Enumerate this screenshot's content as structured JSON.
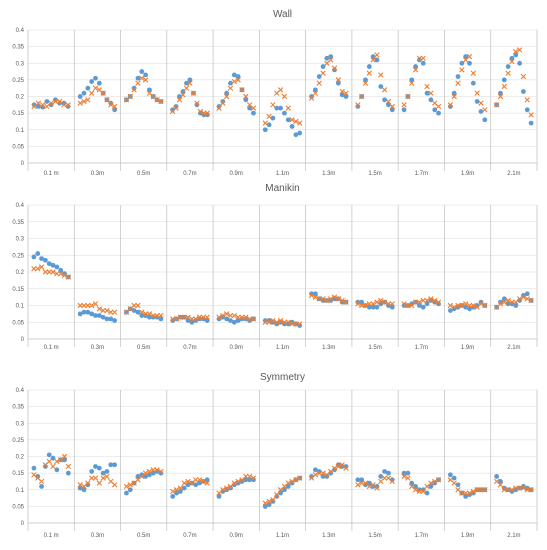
{
  "chart_data": [
    {
      "type": "scatter",
      "title": "Wall",
      "xlabel": "",
      "ylabel": "",
      "ylim": [
        0,
        0.4
      ],
      "yticks": [
        "0",
        "0.05",
        "0.1",
        "0.15",
        "0.2",
        "0.25",
        "0.3",
        "0.35",
        "0.4"
      ],
      "categories": [
        "0.1 m",
        "0.3m",
        "0.5m",
        "0.7m",
        "0.9m",
        "1.1m",
        "1.3m",
        "1.5m",
        "1.7m",
        "1.9m",
        "2.1m"
      ],
      "grid": true,
      "legend": "none",
      "series": [
        {
          "marker": "circle",
          "color": "#5b9bd5",
          "values": [
            [
              0.175,
              0.17,
              0.168,
              0.185,
              0.175,
              0.19,
              0.18,
              0.18,
              0.17
            ],
            [
              0.2,
              0.21,
              0.225,
              0.245,
              0.255,
              0.24,
              0.21,
              0.19,
              0.18,
              0.16
            ],
            [
              0.19,
              0.2,
              0.225,
              0.255,
              0.275,
              0.265,
              0.22,
              0.2,
              0.19,
              0.185
            ],
            [
              0.16,
              0.17,
              0.2,
              0.215,
              0.24,
              0.25,
              0.21,
              0.175,
              0.15,
              0.145,
              0.145
            ],
            [
              0.17,
              0.185,
              0.21,
              0.24,
              0.265,
              0.26,
              0.22,
              0.19,
              0.165,
              0.15
            ],
            [
              0.1,
              0.115,
              0.135,
              0.165,
              0.165,
              0.15,
              0.13,
              0.11,
              0.085,
              0.09
            ],
            [
              0.2,
              0.22,
              0.26,
              0.29,
              0.315,
              0.32,
              0.28,
              0.24,
              0.205,
              0.2
            ],
            [
              0.17,
              0.2,
              0.25,
              0.29,
              0.32,
              0.31,
              0.23,
              0.19,
              0.175,
              0.16
            ],
            [
              0.16,
              0.2,
              0.25,
              0.29,
              0.31,
              0.3,
              0.21,
              0.19,
              0.16,
              0.15
            ],
            [
              0.17,
              0.21,
              0.26,
              0.3,
              0.32,
              0.3,
              0.24,
              0.185,
              0.155,
              0.13
            ],
            [
              0.175,
              0.21,
              0.25,
              0.29,
              0.315,
              0.325,
              0.3,
              0.215,
              0.16,
              0.12
            ]
          ]
        },
        {
          "marker": "x",
          "color": "#ed7d31",
          "values": [
            [
              0.17,
              0.18,
              0.175,
              0.17,
              0.18,
              0.185,
              0.185,
              0.175,
              0.175
            ],
            [
              0.18,
              0.185,
              0.19,
              0.21,
              0.225,
              0.22,
              0.21,
              0.19,
              0.175,
              0.17
            ],
            [
              0.19,
              0.2,
              0.22,
              0.24,
              0.255,
              0.25,
              0.21,
              0.2,
              0.19,
              0.185
            ],
            [
              0.155,
              0.165,
              0.19,
              0.205,
              0.225,
              0.24,
              0.21,
              0.18,
              0.155,
              0.15,
              0.15
            ],
            [
              0.165,
              0.18,
              0.2,
              0.225,
              0.245,
              0.25,
              0.22,
              0.2,
              0.175,
              0.165
            ],
            [
              0.12,
              0.14,
              0.175,
              0.21,
              0.22,
              0.2,
              0.165,
              0.13,
              0.125,
              0.12
            ],
            [
              0.195,
              0.21,
              0.24,
              0.27,
              0.3,
              0.31,
              0.285,
              0.25,
              0.215,
              0.21
            ],
            [
              0.175,
              0.2,
              0.24,
              0.27,
              0.31,
              0.325,
              0.265,
              0.22,
              0.185,
              0.17
            ],
            [
              0.175,
              0.2,
              0.24,
              0.28,
              0.315,
              0.315,
              0.23,
              0.21,
              0.18,
              0.17
            ],
            [
              0.175,
              0.2,
              0.24,
              0.28,
              0.31,
              0.32,
              0.27,
              0.21,
              0.18,
              0.16
            ],
            [
              0.175,
              0.2,
              0.23,
              0.27,
              0.305,
              0.335,
              0.34,
              0.26,
              0.19,
              0.145
            ]
          ]
        }
      ]
    },
    {
      "type": "scatter",
      "title": "Manikin",
      "xlabel": "",
      "ylabel": "",
      "ylim": [
        0,
        0.4
      ],
      "yticks": [
        "0",
        "0.05",
        "0.1",
        "0.15",
        "0.2",
        "0.25",
        "0.3",
        "0.35",
        "0.4"
      ],
      "categories": [
        "0.1 m",
        "0.3m",
        "0.5m",
        "0.7m",
        "0.9m",
        "1.1m",
        "1.3m",
        "1.5m",
        "1.7m",
        "1.9m",
        "2.1m"
      ],
      "grid": true,
      "legend": "none",
      "series": [
        {
          "marker": "circle",
          "color": "#5b9bd5",
          "values": [
            [
              0.245,
              0.255,
              0.24,
              0.235,
              0.225,
              0.22,
              0.215,
              0.205,
              0.195,
              0.185
            ],
            [
              0.075,
              0.08,
              0.08,
              0.075,
              0.07,
              0.07,
              0.065,
              0.06,
              0.06,
              0.055
            ],
            [
              0.08,
              0.09,
              0.085,
              0.08,
              0.07,
              0.07,
              0.065,
              0.065,
              0.065,
              0.06
            ],
            [
              0.055,
              0.06,
              0.065,
              0.065,
              0.055,
              0.05,
              0.055,
              0.06,
              0.06,
              0.055
            ],
            [
              0.06,
              0.065,
              0.06,
              0.055,
              0.05,
              0.055,
              0.06,
              0.06,
              0.055,
              0.06
            ],
            [
              0.055,
              0.055,
              0.05,
              0.045,
              0.05,
              0.045,
              0.045,
              0.05,
              0.045,
              0.04
            ],
            [
              0.135,
              0.135,
              0.12,
              0.115,
              0.115,
              0.115,
              0.12,
              0.12,
              0.11,
              0.11
            ],
            [
              0.11,
              0.11,
              0.1,
              0.095,
              0.095,
              0.095,
              0.105,
              0.11,
              0.1,
              0.095
            ],
            [
              0.1,
              0.1,
              0.105,
              0.11,
              0.1,
              0.095,
              0.105,
              0.115,
              0.11,
              0.105
            ],
            [
              0.085,
              0.09,
              0.095,
              0.1,
              0.095,
              0.09,
              0.095,
              0.1,
              0.11,
              0.1
            ],
            [
              0.095,
              0.11,
              0.12,
              0.105,
              0.105,
              0.1,
              0.115,
              0.13,
              0.135,
              0.115
            ]
          ]
        },
        {
          "marker": "x",
          "color": "#ed7d31",
          "values": [
            [
              0.21,
              0.21,
              0.215,
              0.2,
              0.2,
              0.2,
              0.195,
              0.195,
              0.19,
              0.185
            ],
            [
              0.1,
              0.1,
              0.1,
              0.1,
              0.105,
              0.09,
              0.085,
              0.085,
              0.08,
              0.08
            ],
            [
              0.08,
              0.09,
              0.1,
              0.1,
              0.08,
              0.075,
              0.075,
              0.07,
              0.07,
              0.07
            ],
            [
              0.06,
              0.06,
              0.065,
              0.065,
              0.065,
              0.06,
              0.06,
              0.065,
              0.065,
              0.065
            ],
            [
              0.065,
              0.07,
              0.075,
              0.07,
              0.07,
              0.065,
              0.065,
              0.065,
              0.06,
              0.06
            ],
            [
              0.05,
              0.05,
              0.055,
              0.05,
              0.055,
              0.05,
              0.05,
              0.045,
              0.045,
              0.045
            ],
            [
              0.13,
              0.125,
              0.12,
              0.12,
              0.115,
              0.12,
              0.125,
              0.12,
              0.115,
              0.11
            ],
            [
              0.105,
              0.1,
              0.1,
              0.105,
              0.105,
              0.11,
              0.115,
              0.11,
              0.105,
              0.105
            ],
            [
              0.105,
              0.1,
              0.1,
              0.11,
              0.11,
              0.115,
              0.115,
              0.12,
              0.115,
              0.11
            ],
            [
              0.1,
              0.095,
              0.1,
              0.1,
              0.105,
              0.1,
              0.1,
              0.095,
              0.105,
              0.1
            ],
            [
              0.095,
              0.105,
              0.11,
              0.115,
              0.11,
              0.11,
              0.12,
              0.125,
              0.12,
              0.115
            ]
          ]
        }
      ]
    },
    {
      "type": "scatter",
      "title": "Symmetry",
      "xlabel": "",
      "ylabel": "",
      "ylim": [
        0,
        0.4
      ],
      "yticks": [
        "0",
        "0.05",
        "0.1",
        "0.15",
        "0.2",
        "0.25",
        "0.3",
        "0.35",
        "0.4"
      ],
      "categories": [
        "0.1 m",
        "0.3m",
        "0.5m",
        "0.7m",
        "0.9m",
        "1.1m",
        "1.3m",
        "1.5m",
        "1.7m",
        "1.9m",
        "2.1m"
      ],
      "grid": true,
      "legend": "none",
      "series": [
        {
          "marker": "circle",
          "color": "#5b9bd5",
          "values": [
            [
              0.165,
              0.14,
              0.11,
              0.17,
              0.205,
              0.195,
              0.16,
              0.19,
              0.19,
              0.15
            ],
            [
              0.105,
              0.1,
              0.115,
              0.155,
              0.17,
              0.165,
              0.15,
              0.155,
              0.175,
              0.175
            ],
            [
              0.09,
              0.1,
              0.12,
              0.14,
              0.145,
              0.14,
              0.145,
              0.15,
              0.155,
              0.15
            ],
            [
              0.08,
              0.09,
              0.095,
              0.105,
              0.115,
              0.12,
              0.115,
              0.12,
              0.125,
              0.13
            ],
            [
              0.08,
              0.095,
              0.1,
              0.105,
              0.115,
              0.12,
              0.125,
              0.13,
              0.13,
              0.13
            ],
            [
              0.05,
              0.055,
              0.065,
              0.08,
              0.09,
              0.1,
              0.11,
              0.12,
              0.13,
              0.135
            ],
            [
              0.14,
              0.16,
              0.155,
              0.14,
              0.14,
              0.15,
              0.16,
              0.175,
              0.17,
              0.17
            ],
            [
              0.13,
              0.13,
              0.115,
              0.12,
              0.11,
              0.11,
              0.14,
              0.155,
              0.15,
              0.13
            ],
            [
              0.15,
              0.15,
              0.12,
              0.11,
              0.1,
              0.1,
              0.09,
              0.11,
              0.12,
              0.13
            ],
            [
              0.145,
              0.135,
              0.115,
              0.09,
              0.08,
              0.085,
              0.09,
              0.1,
              0.1,
              0.1
            ],
            [
              0.14,
              0.125,
              0.105,
              0.1,
              0.095,
              0.1,
              0.105,
              0.11,
              0.105,
              0.1
            ]
          ]
        },
        {
          "marker": "x",
          "color": "#ed7d31",
          "values": [
            [
              0.145,
              0.135,
              0.125,
              0.175,
              0.185,
              0.17,
              0.185,
              0.19,
              0.2,
              0.17
            ],
            [
              0.115,
              0.11,
              0.12,
              0.135,
              0.135,
              0.12,
              0.135,
              0.14,
              0.125,
              0.115
            ],
            [
              0.11,
              0.115,
              0.12,
              0.13,
              0.14,
              0.15,
              0.155,
              0.16,
              0.16,
              0.155
            ],
            [
              0.095,
              0.1,
              0.105,
              0.12,
              0.125,
              0.12,
              0.13,
              0.13,
              0.125,
              0.12
            ],
            [
              0.09,
              0.1,
              0.105,
              0.11,
              0.12,
              0.125,
              0.13,
              0.14,
              0.14,
              0.135
            ],
            [
              0.06,
              0.065,
              0.07,
              0.085,
              0.1,
              0.11,
              0.12,
              0.125,
              0.13,
              0.135
            ],
            [
              0.135,
              0.145,
              0.15,
              0.15,
              0.145,
              0.155,
              0.165,
              0.17,
              0.175,
              0.165
            ],
            [
              0.115,
              0.12,
              0.12,
              0.11,
              0.115,
              0.105,
              0.125,
              0.135,
              0.135,
              0.125
            ],
            [
              0.14,
              0.135,
              0.11,
              0.1,
              0.095,
              0.095,
              0.11,
              0.12,
              0.125,
              0.13
            ],
            [
              0.13,
              0.12,
              0.1,
              0.09,
              0.09,
              0.09,
              0.095,
              0.1,
              0.1,
              0.1
            ],
            [
              0.125,
              0.115,
              0.1,
              0.1,
              0.1,
              0.105,
              0.105,
              0.105,
              0.1,
              0.1
            ]
          ]
        }
      ]
    }
  ]
}
